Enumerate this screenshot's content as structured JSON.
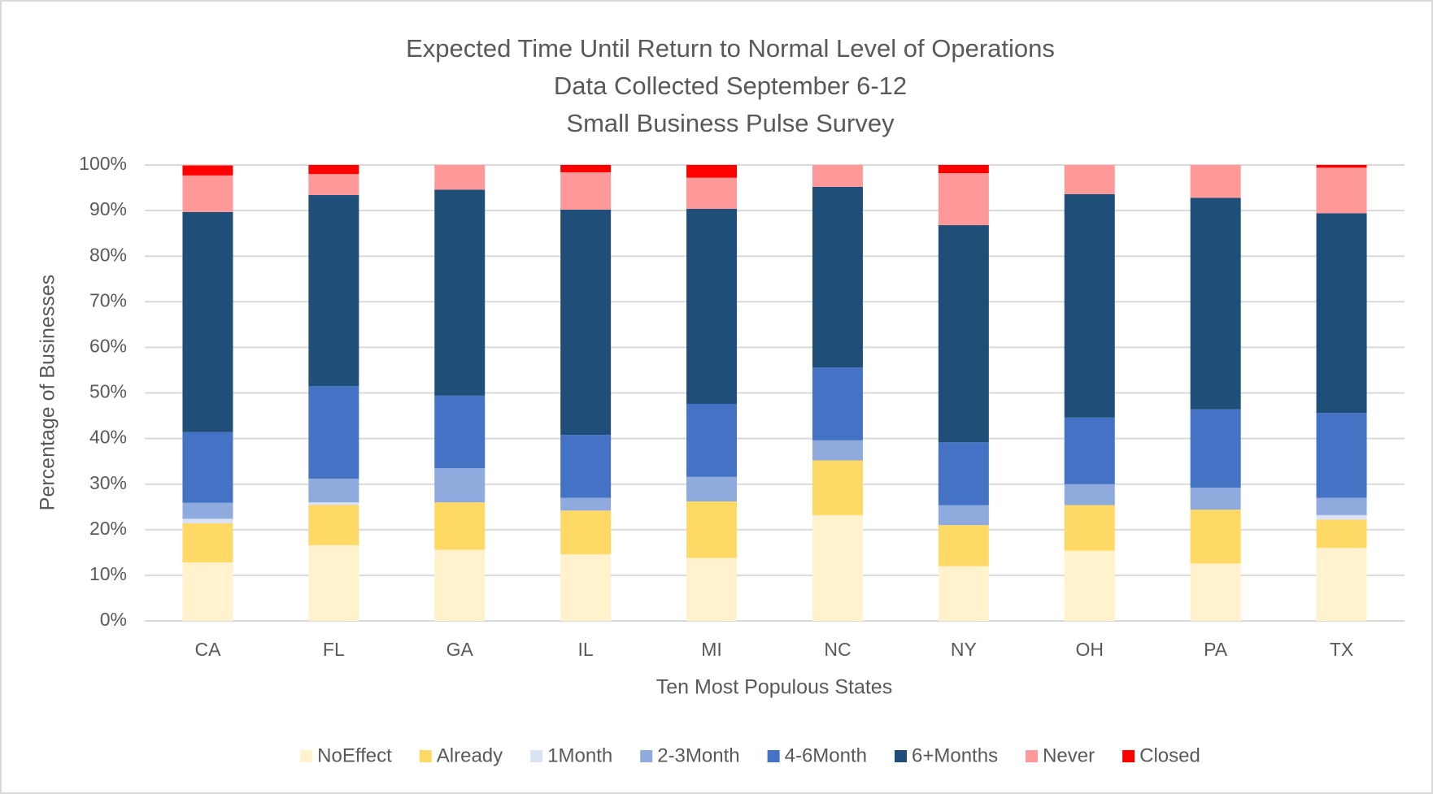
{
  "chart_data": {
    "type": "stacked_bar",
    "title": [
      "Expected Time Until Return to Normal Level of Operations",
      "Data Collected September  6-12",
      "Small Business Pulse Survey"
    ],
    "x_label": "Ten Most Populous States",
    "y_label": "Percentage of Businesses",
    "categories": [
      "CA",
      "FL",
      "GA",
      "IL",
      "MI",
      "NC",
      "NY",
      "OH",
      "PA",
      "TX"
    ],
    "series": [
      {
        "name": "NoEffect",
        "color": "#fff2cc",
        "values": [
          12.8,
          16.6,
          15.6,
          14.6,
          13.8,
          23.2,
          12,
          15.4,
          12.6,
          16
        ]
      },
      {
        "name": "Already",
        "color": "#ffd966",
        "values": [
          8.6,
          8.8,
          10.4,
          9.6,
          12.4,
          12,
          9,
          10,
          11.8,
          6.2
        ]
      },
      {
        "name": "1Month",
        "color": "#dae3f3",
        "values": [
          1,
          0.6,
          0,
          0,
          0,
          0,
          0,
          0,
          0,
          1
        ]
      },
      {
        "name": "2-3Month",
        "color": "#8faadc",
        "values": [
          3.5,
          5.2,
          7.5,
          2.8,
          5.4,
          4.4,
          4.4,
          4.6,
          4.8,
          3.8
        ]
      },
      {
        "name": "4-6Month",
        "color": "#4472c4",
        "values": [
          15.5,
          20.3,
          15.9,
          13.8,
          16,
          16,
          13.8,
          14.6,
          17.2,
          18.6
        ]
      },
      {
        "name": "6+Months",
        "color": "#1f4e79",
        "values": [
          48.3,
          41.9,
          45.2,
          49.4,
          42.8,
          39.6,
          47.6,
          49,
          46.4,
          43.8
        ]
      },
      {
        "name": "Never",
        "color": "#ff9999",
        "values": [
          8,
          4.6,
          5.4,
          8.2,
          6.8,
          4.8,
          11.4,
          6.4,
          7.2,
          10
        ]
      },
      {
        "name": "Closed",
        "color": "#ff0000",
        "values": [
          2.2,
          2,
          0,
          1.6,
          2.8,
          0,
          1.8,
          0,
          0,
          0.6
        ]
      }
    ],
    "ylim": [
      0,
      100
    ],
    "yticks": [
      {
        "value": 0,
        "label": "0%"
      },
      {
        "value": 10,
        "label": "10%"
      },
      {
        "value": 20,
        "label": "20%"
      },
      {
        "value": 30,
        "label": "30%"
      },
      {
        "value": 40,
        "label": "40%"
      },
      {
        "value": 50,
        "label": "50%"
      },
      {
        "value": 60,
        "label": "60%"
      },
      {
        "value": 70,
        "label": "70%"
      },
      {
        "value": 80,
        "label": "80%"
      },
      {
        "value": 90,
        "label": "90%"
      },
      {
        "value": 100,
        "label": "100%"
      }
    ],
    "grid": true,
    "legend": "bottom"
  }
}
